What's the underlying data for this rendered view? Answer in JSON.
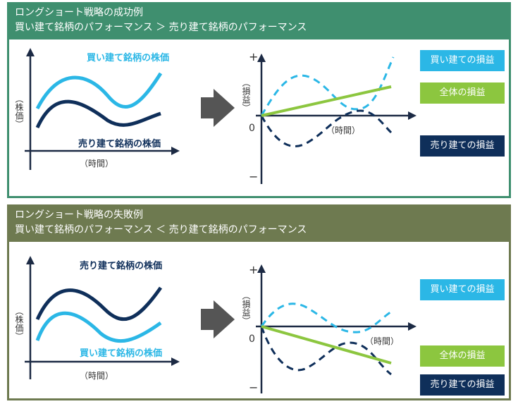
{
  "success": {
    "header_line1": "ロングショート戦略の成功例",
    "header_line2": "買い建て銘柄のパフォーマンス ＞ 売り建て銘柄のパフォーマンス",
    "left_ylabel": "（株価）",
    "left_xlabel": "（時間）",
    "buy_line_label": "買い建て銘柄の株価",
    "sell_line_label": "売り建て銘柄の株価",
    "right_ylabel": "（損益）",
    "right_xlabel": "（時間）",
    "plus_sign": "+",
    "zero": "0",
    "minus_sign": "−",
    "legend_buy": "買い建ての損益",
    "legend_total": "全体の損益",
    "legend_sell": "売り建ての損益"
  },
  "failure": {
    "header_line1": "ロングショート戦略の失敗例",
    "header_line2": "買い建て銘柄のパフォーマンス ＜ 売り建て銘柄のパフォーマンス",
    "left_ylabel": "（株価）",
    "left_xlabel": "（時間）",
    "buy_line_label": "買い建て銘柄の株価",
    "sell_line_label": "売り建て銘柄の株価",
    "right_ylabel": "（損益）",
    "right_xlabel": "（時間）",
    "plus_sign": "+",
    "zero": "0",
    "minus_sign": "−",
    "legend_buy": "買い建ての損益",
    "legend_total": "全体の損益",
    "legend_sell": "売り建ての損益"
  },
  "colors": {
    "buy": "#2bb7e6",
    "sell": "#0f2f5a",
    "total": "#8cc63f",
    "arrow": "#555555",
    "success_header": "#3f8f6f",
    "failure_header": "#6e7a50"
  }
}
